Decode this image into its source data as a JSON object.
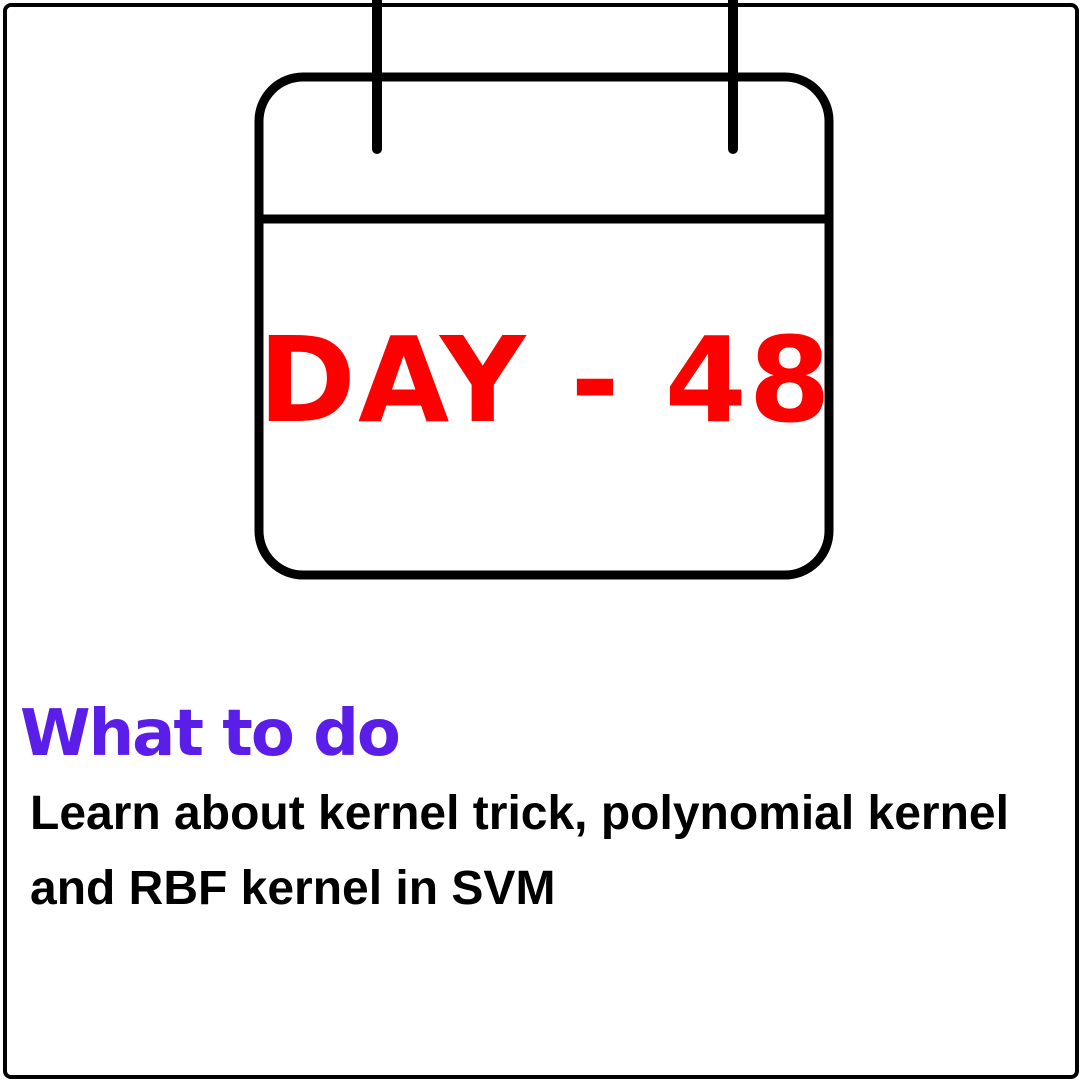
{
  "calendar": {
    "day_label": "DAY - 48",
    "icon": "calendar-icon"
  },
  "section": {
    "heading": "What to do",
    "description": "Learn about kernel trick, polynomial kernel and RBF kernel in SVM"
  },
  "colors": {
    "day_label": "#ff0000",
    "heading": "#5b1ee8",
    "text": "#000000",
    "outline": "#000000",
    "background": "#ffffff"
  }
}
